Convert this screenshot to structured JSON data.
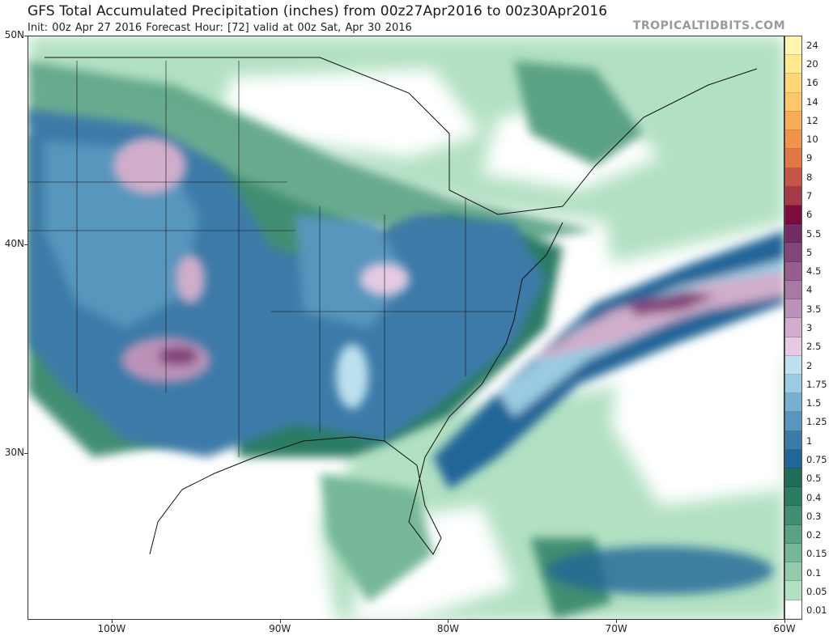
{
  "header": {
    "title": "GFS Total Accumulated Precipitation (inches) from 00z27Apr2016 to 00z30Apr2016",
    "subtitle": "Init: 00z Apr 27 2016   Forecast Hour: [72]   valid at 00z Sat, Apr 30 2016",
    "brand": "TROPICALTIDBITS.COM"
  },
  "map": {
    "lat_labels": [
      "50N",
      "40N",
      "30N"
    ],
    "lon_labels": [
      "100W",
      "90W",
      "80W",
      "70W",
      "60W"
    ],
    "lat_values": [
      50,
      40,
      30
    ],
    "lon_values": [
      -100,
      -90,
      -80,
      -70,
      -60
    ],
    "extent": {
      "lon_min": -105,
      "lon_max": -60,
      "lat_min": 22,
      "lat_max": 50
    }
  },
  "legend": {
    "unit": "inches",
    "levels": [
      {
        "label": "24",
        "color": "#fff4b0"
      },
      {
        "label": "20",
        "color": "#ffe88e"
      },
      {
        "label": "16",
        "color": "#ffd779"
      },
      {
        "label": "14",
        "color": "#fcc66a"
      },
      {
        "label": "12",
        "color": "#f8ad5a"
      },
      {
        "label": "10",
        "color": "#f1934d"
      },
      {
        "label": "9",
        "color": "#e07845"
      },
      {
        "label": "8",
        "color": "#c45748"
      },
      {
        "label": "7",
        "color": "#a43a48"
      },
      {
        "label": "6",
        "color": "#7a0c3e"
      },
      {
        "label": "5.5",
        "color": "#702c63"
      },
      {
        "label": "5",
        "color": "#82457a"
      },
      {
        "label": "4.5",
        "color": "#955e8f"
      },
      {
        "label": "4",
        "color": "#a879a4"
      },
      {
        "label": "3.5",
        "color": "#bc93b8"
      },
      {
        "label": "3",
        "color": "#d0adcb"
      },
      {
        "label": "2.5",
        "color": "#e6cae2"
      },
      {
        "label": "2",
        "color": "#bde1ef"
      },
      {
        "label": "1.75",
        "color": "#9acbe2"
      },
      {
        "label": "1.5",
        "color": "#78b1d0"
      },
      {
        "label": "1.25",
        "color": "#5896bd"
      },
      {
        "label": "1",
        "color": "#3c7aa8"
      },
      {
        "label": "0.75",
        "color": "#226597"
      },
      {
        "label": "0.5",
        "color": "#1f6c59"
      },
      {
        "label": "0.4",
        "color": "#2c7c63"
      },
      {
        "label": "0.3",
        "color": "#428e72"
      },
      {
        "label": "0.2",
        "color": "#5aa283"
      },
      {
        "label": "0.15",
        "color": "#76b797"
      },
      {
        "label": "0.1",
        "color": "#94ccab"
      },
      {
        "label": "0.05",
        "color": "#b2e0c2"
      },
      {
        "label": "0.01",
        "color": "#ffffff"
      }
    ]
  }
}
